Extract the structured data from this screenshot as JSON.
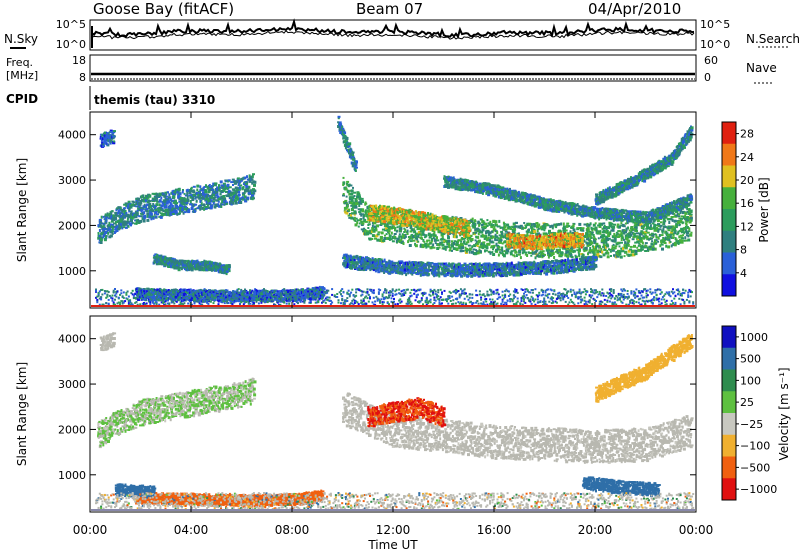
{
  "header": {
    "station": "Goose Bay (fitACF)",
    "beam": "Beam 07",
    "date": "04/Apr/2010"
  },
  "side_labels": {
    "nsky": "N.Sky",
    "nsearch": "N.Search",
    "freq_line1": "Freq.",
    "freq_line2": "[MHz]",
    "nave": "Nave",
    "cpid": "CPID",
    "cpid_value": "themis (tau) 3310"
  },
  "noise_panel": {
    "left_ticks": [
      "10^5",
      "10^0"
    ],
    "right_ticks": [
      "10^5",
      "10^0"
    ]
  },
  "freq_panel": {
    "left_ticks": [
      "18",
      "8"
    ],
    "right_ticks": [
      "60",
      "0"
    ]
  },
  "colors": {
    "power_scale": [
      "#1010e0",
      "#2a60d8",
      "#2f7f7f",
      "#2c9c5c",
      "#46b03c",
      "#e0c020",
      "#f07818",
      "#e02010"
    ],
    "velocity_scale": [
      "#1010c0",
      "#2f6fa8",
      "#2e8c4e",
      "#5ec040",
      "#c8c8c0",
      "#f0b030",
      "#f06010",
      "#e01010"
    ],
    "ground_scatter": "#b8b8b0"
  },
  "chart_data": [
    {
      "type": "heatmap",
      "title": "",
      "xlabel": "Time UT",
      "ylabel": "Slant Range [km]",
      "x_ticks": [
        "00:00",
        "04:00",
        "08:00",
        "12:00",
        "16:00",
        "20:00",
        "00:00"
      ],
      "y_ticks": [
        "1000",
        "2000",
        "3000",
        "4000"
      ],
      "xlim_hours": [
        0,
        24
      ],
      "ylim_km": [
        180,
        4500
      ],
      "colorbar": {
        "label": "Power [dB]",
        "ticks": [
          "4",
          "8",
          "12",
          "16",
          "20",
          "24",
          "28"
        ],
        "range": [
          0,
          30
        ]
      },
      "scatter_bands": [
        {
          "t": [
            0.3,
            1.0,
            2.0,
            3.0,
            4.0,
            5.0,
            6.0,
            6.5
          ],
          "r": [
            1900,
            2150,
            2400,
            2500,
            2600,
            2700,
            2800,
            2900
          ],
          "w": 280,
          "v": 9
        },
        {
          "t": [
            0.4,
            0.9
          ],
          "r": [
            3900,
            4000
          ],
          "w": 150,
          "v": 7
        },
        {
          "t": [
            2.5,
            3.5,
            4.5,
            5.5
          ],
          "r": [
            1300,
            1150,
            1150,
            1050
          ],
          "w": 100,
          "v": 10
        },
        {
          "t": [
            1.8,
            3.0,
            4.5,
            6.0,
            8.0,
            9.2
          ],
          "r": [
            520,
            500,
            480,
            460,
            480,
            560
          ],
          "w": 120,
          "v": 7
        },
        {
          "t": [
            10.0,
            11.0,
            12.0,
            13.0,
            14.0,
            15.0,
            16.0,
            17.0,
            18.0,
            19.0,
            20.0,
            21.0,
            22.0,
            23.0,
            23.8
          ],
          "r": [
            2700,
            2100,
            2000,
            1950,
            1850,
            1800,
            1750,
            1700,
            1700,
            1700,
            1700,
            1700,
            1800,
            1950,
            2100
          ],
          "w": 380,
          "v": 14
        },
        {
          "t": [
            11.0,
            12.0,
            13.0,
            14.0,
            15.0
          ],
          "r": [
            2300,
            2250,
            2150,
            2050,
            1950
          ],
          "w": 180,
          "v": 20
        },
        {
          "t": [
            16.5,
            17.5,
            18.5,
            19.5
          ],
          "r": [
            1700,
            1650,
            1700,
            1700
          ],
          "w": 150,
          "v": 22
        },
        {
          "t": [
            14.0,
            16.0,
            18.0,
            20.0,
            22.0,
            23.8
          ],
          "r": [
            3000,
            2800,
            2500,
            2300,
            2200,
            2600
          ],
          "w": 120,
          "v": 10
        },
        {
          "t": [
            20.0,
            21.5,
            23.0,
            23.8
          ],
          "r": [
            2600,
            3000,
            3500,
            4100
          ],
          "w": 120,
          "v": 10
        },
        {
          "t": [
            10.0,
            12.0,
            14.0,
            16.0,
            18.0,
            20.0
          ],
          "r": [
            1250,
            1100,
            1050,
            1050,
            1100,
            1200
          ],
          "w": 140,
          "v": 8
        },
        {
          "t": [
            9.8,
            10.5
          ],
          "r": [
            4300,
            3300
          ],
          "w": 120,
          "v": 9
        }
      ]
    },
    {
      "type": "heatmap",
      "title": "",
      "xlabel": "Time UT",
      "ylabel": "Slant Range [km]",
      "x_ticks": [
        "00:00",
        "04:00",
        "08:00",
        "12:00",
        "16:00",
        "20:00",
        "00:00"
      ],
      "y_ticks": [
        "1000",
        "2000",
        "3000",
        "4000"
      ],
      "xlim_hours": [
        0,
        24
      ],
      "ylim_km": [
        180,
        4500
      ],
      "colorbar": {
        "label": "Velocity [m s⁻¹]",
        "ticks": [
          "1000",
          "500",
          "100",
          "25",
          "−25",
          "−100",
          "−500",
          "−1000"
        ]
      },
      "scatter_bands": [
        {
          "t": [
            0.3,
            1.0,
            2.0,
            3.0,
            4.0,
            5.0,
            6.0,
            6.5
          ],
          "r": [
            1900,
            2150,
            2400,
            2500,
            2600,
            2700,
            2800,
            2900
          ],
          "w": 280,
          "v": 25
        },
        {
          "t": [
            0.4,
            0.9
          ],
          "r": [
            3900,
            4000
          ],
          "w": 150,
          "v": 0
        },
        {
          "t": [
            1.8,
            3.0,
            4.5,
            6.0,
            8.0,
            9.2
          ],
          "r": [
            520,
            500,
            480,
            460,
            480,
            560
          ],
          "w": 120,
          "v": -200
        },
        {
          "t": [
            1.0,
            2.5
          ],
          "r": [
            700,
            650
          ],
          "w": 120,
          "v": 150
        },
        {
          "t": [
            10.0,
            12.0,
            14.0,
            16.0,
            18.0,
            20.0,
            22.0,
            23.8
          ],
          "r": [
            2500,
            2000,
            1900,
            1750,
            1700,
            1650,
            1700,
            2000
          ],
          "w": 360,
          "v": 0
        },
        {
          "t": [
            11.0,
            12.0,
            13.0,
            14.0
          ],
          "r": [
            2300,
            2400,
            2500,
            2300
          ],
          "w": 220,
          "v": -500
        },
        {
          "t": [
            19.5,
            21.0,
            22.5
          ],
          "r": [
            850,
            750,
            700
          ],
          "w": 140,
          "v": 120
        },
        {
          "t": [
            20.0,
            22.0,
            23.8
          ],
          "r": [
            2800,
            3300,
            4000
          ],
          "w": 160,
          "v": -80
        }
      ]
    }
  ]
}
